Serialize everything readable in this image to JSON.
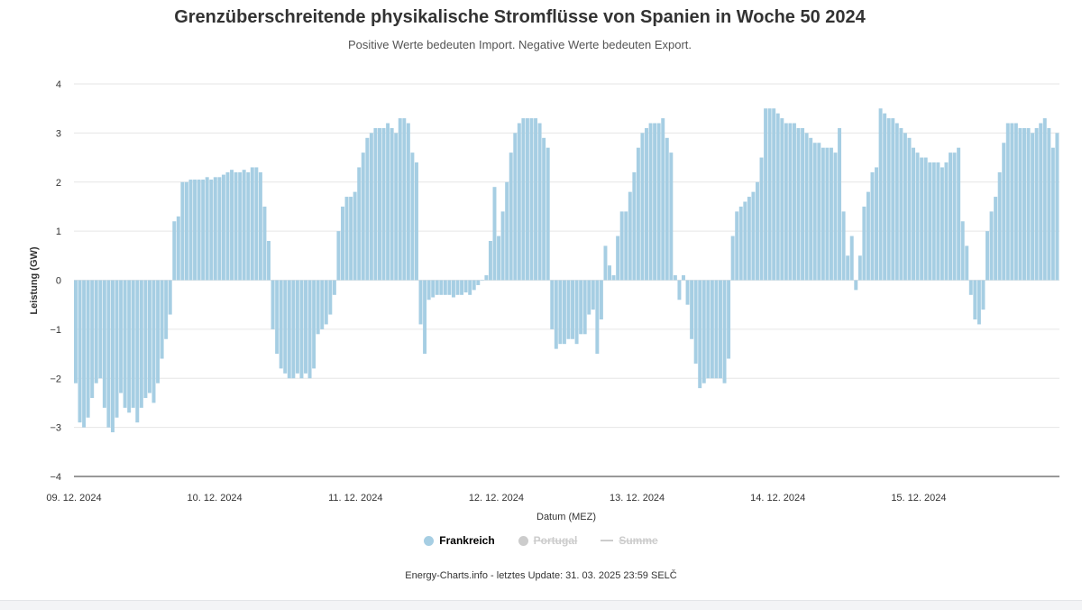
{
  "title": "Grenzüberschreitende physikalische Stromflüsse von Spanien in Woche 50 2024",
  "subtitle": "Positive Werte bedeuten Import. Negative Werte bedeuten Export.",
  "footer": "Energy-Charts.info - letztes Update: 31. 03. 2025 23:59 SELČ",
  "legend": [
    {
      "label": "Frankreich",
      "color": "#a6cee3",
      "shape": "dot",
      "visible": true
    },
    {
      "label": "Portugal",
      "color": "#cccccc",
      "shape": "dot",
      "visible": false
    },
    {
      "label": "Summe",
      "color": "#cccccc",
      "shape": "line",
      "visible": false
    }
  ],
  "chart_data": {
    "type": "bar",
    "xlabel": "Datum (MEZ)",
    "ylabel": "Leistung (GW)",
    "ylim": [
      -4,
      4
    ],
    "yticks": [
      "4",
      "3",
      "2",
      "1",
      "0",
      "−1",
      "−2",
      "−3",
      "−4"
    ],
    "xticks": [
      "09. 12. 2024",
      "10. 12. 2024",
      "11. 12. 2024",
      "12. 12. 2024",
      "13. 12. 2024",
      "14. 12. 2024",
      "15. 12. 2024"
    ],
    "grid": true,
    "resolution": "hourly (approximate readings)",
    "series": [
      {
        "name": "Frankreich",
        "color": "#a6cee3",
        "values": [
          -2.1,
          -2.9,
          -3.0,
          -2.8,
          -2.4,
          -2.1,
          -2.0,
          -2.6,
          -3.0,
          -3.1,
          -2.8,
          -2.3,
          -2.6,
          -2.7,
          -2.6,
          -2.9,
          -2.6,
          -2.4,
          -2.3,
          -2.5,
          -2.1,
          -1.6,
          -1.2,
          -0.7,
          1.2,
          1.3,
          2.0,
          2.0,
          2.05,
          2.05,
          2.05,
          2.05,
          2.1,
          2.05,
          2.1,
          2.1,
          2.15,
          2.2,
          2.25,
          2.2,
          2.2,
          2.25,
          2.2,
          2.3,
          2.3,
          2.2,
          1.5,
          0.8,
          -1.0,
          -1.5,
          -1.8,
          -1.9,
          -2.0,
          -2.0,
          -1.9,
          -2.0,
          -1.9,
          -2.0,
          -1.8,
          -1.1,
          -1.0,
          -0.9,
          -0.7,
          -0.3,
          1.0,
          1.5,
          1.7,
          1.7,
          1.8,
          2.3,
          2.6,
          2.9,
          3.0,
          3.1,
          3.1,
          3.1,
          3.2,
          3.1,
          3.0,
          3.3,
          3.3,
          3.2,
          2.6,
          2.4,
          -0.9,
          -1.5,
          -0.4,
          -0.35,
          -0.3,
          -0.3,
          -0.3,
          -0.3,
          -0.35,
          -0.3,
          -0.3,
          -0.25,
          -0.3,
          -0.2,
          -0.1,
          0.0,
          0.1,
          0.8,
          1.9,
          0.9,
          1.4,
          2.0,
          2.6,
          3.0,
          3.2,
          3.3,
          3.3,
          3.3,
          3.3,
          3.2,
          2.9,
          2.7,
          -1.0,
          -1.4,
          -1.3,
          -1.3,
          -1.2,
          -1.2,
          -1.3,
          -1.1,
          -1.1,
          -0.7,
          -0.6,
          -1.5,
          -0.8,
          0.7,
          0.3,
          0.1,
          0.9,
          1.4,
          1.4,
          1.8,
          2.2,
          2.7,
          3.0,
          3.1,
          3.2,
          3.2,
          3.2,
          3.3,
          2.9,
          2.6,
          0.1,
          -0.4,
          0.1,
          -0.5,
          -1.2,
          -1.7,
          -2.2,
          -2.1,
          -2.0,
          -2.0,
          -2.0,
          -2.0,
          -2.1,
          -1.6,
          0.9,
          1.4,
          1.5,
          1.6,
          1.7,
          1.8,
          2.0,
          2.5,
          3.5,
          3.5,
          3.5,
          3.4,
          3.3,
          3.2,
          3.2,
          3.2,
          3.1,
          3.1,
          3.0,
          2.9,
          2.8,
          2.8,
          2.7,
          2.7,
          2.7,
          2.6,
          3.1,
          1.4,
          0.5,
          0.9,
          -0.2,
          0.5,
          1.5,
          1.8,
          2.2,
          2.3,
          3.5,
          3.4,
          3.3,
          3.3,
          3.2,
          3.1,
          3.0,
          2.9,
          2.7,
          2.6,
          2.5,
          2.5,
          2.4,
          2.4,
          2.4,
          2.3,
          2.4,
          2.6,
          2.6,
          2.7,
          1.2,
          0.7,
          -0.3,
          -0.8,
          -0.9,
          -0.6,
          1.0,
          1.4,
          1.7,
          2.2,
          2.8,
          3.2,
          3.2,
          3.2,
          3.1,
          3.1,
          3.1,
          3.0,
          3.1,
          3.2,
          3.3,
          3.1,
          2.7,
          3.0
        ]
      }
    ]
  }
}
